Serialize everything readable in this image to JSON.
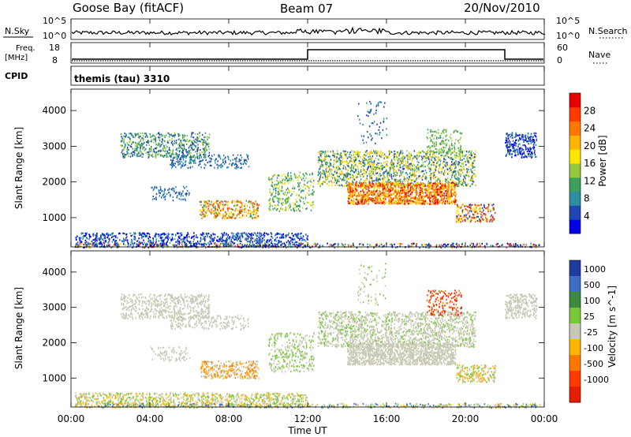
{
  "header": {
    "station": "Goose Bay (fitACF)",
    "beam": "Beam 07",
    "date": "20/Nov/2010"
  },
  "panels": {
    "nsky_label": "N.Sky",
    "nsearch_label": "N.Search",
    "count_ticks_left": [
      "10^5",
      "10^0"
    ],
    "count_ticks_right": [
      "10^5",
      "10^0"
    ],
    "freq_label_1": "Freq.",
    "freq_label_2": "[MHz]",
    "freq_ticks": [
      "18",
      "8"
    ],
    "nave_label": "Nave",
    "nave_ticks": [
      "60",
      "0"
    ],
    "cpid_label": "CPID",
    "cpid_text": "themis (tau) 3310"
  },
  "chart_data": [
    {
      "type": "heatmap",
      "panel": "power",
      "ylabel": "Slant Range [km]",
      "yticks": [
        "1000",
        "2000",
        "3000",
        "4000"
      ],
      "ylim": [
        180,
        4600
      ],
      "xlim_hours": [
        0,
        24
      ],
      "colorbar_label": "Power [dB]",
      "colorbar_ticks": [
        "4",
        "8",
        "12",
        "16",
        "20",
        "24",
        "28"
      ],
      "colors": [
        "#0000e6",
        "#1e46b4",
        "#2d8fa0",
        "#3ca05a",
        "#96c83c",
        "#ffe600",
        "#ffb400",
        "#ff7800",
        "#ff3c00",
        "#e60000"
      ]
    },
    {
      "type": "heatmap",
      "panel": "velocity",
      "ylabel": "Slant Range [km]",
      "yticks": [
        "1000",
        "2000",
        "3000",
        "4000"
      ],
      "ylim": [
        180,
        4600
      ],
      "xlim_hours": [
        0,
        24
      ],
      "colorbar_label": "Velocity [m s^-1]",
      "colorbar_ticks": [
        "1000",
        "500",
        "100",
        "25",
        "-25",
        "-100",
        "-500",
        "-1000"
      ],
      "colors": [
        "#1e3ca0",
        "#3c6ec8",
        "#3c8c3c",
        "#78c83c",
        "#c8c8b4",
        "#ffb400",
        "#ff7800",
        "#ff3c00",
        "#e61e00"
      ]
    }
  ],
  "xaxis": {
    "ticks": [
      "00:00",
      "04:00",
      "08:00",
      "12:00",
      "16:00",
      "20:00",
      "00:00"
    ],
    "label": "Time UT"
  }
}
